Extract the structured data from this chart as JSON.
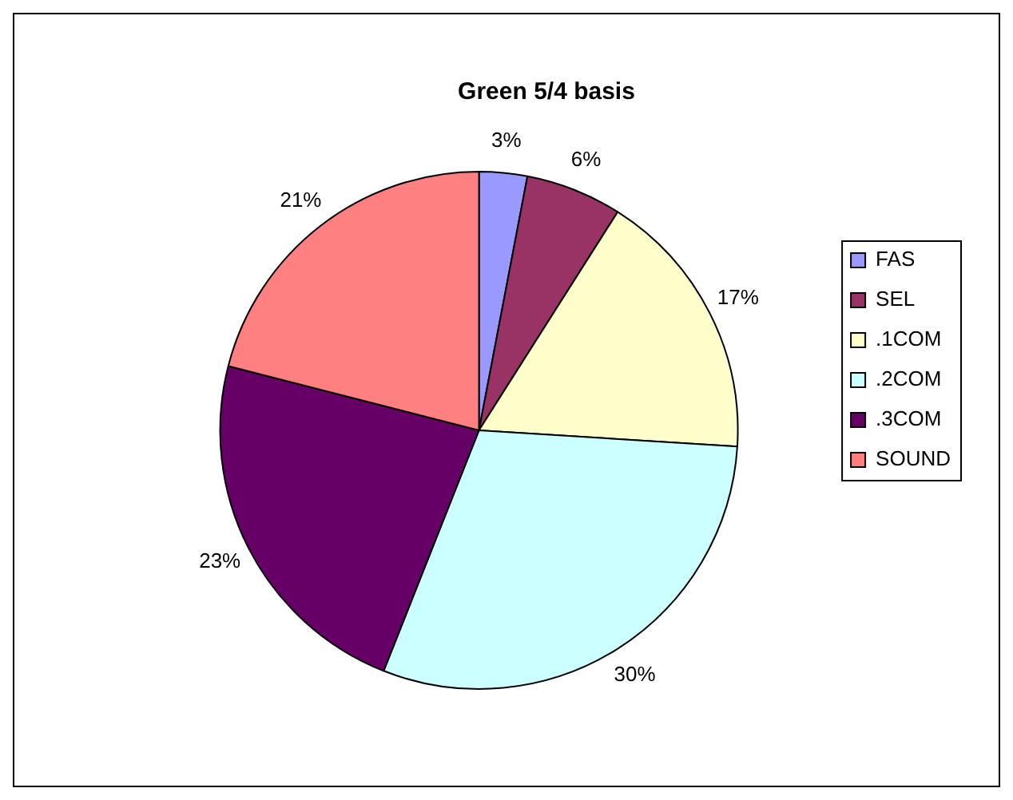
{
  "chart_data": {
    "type": "pie",
    "title": "Green 5/4 basis",
    "categories": [
      "FAS",
      "SEL",
      ".1COM",
      ".2COM",
      ".3COM",
      "SOUND"
    ],
    "values": [
      3,
      6,
      17,
      30,
      23,
      21
    ],
    "colors": [
      "#9999ff",
      "#993366",
      "#ffffcc",
      "#ccffff",
      "#660066",
      "#ff8080"
    ],
    "value_labels": [
      "3%",
      "6%",
      "17%",
      "30%",
      "23%",
      "21%"
    ],
    "legend": "right"
  }
}
